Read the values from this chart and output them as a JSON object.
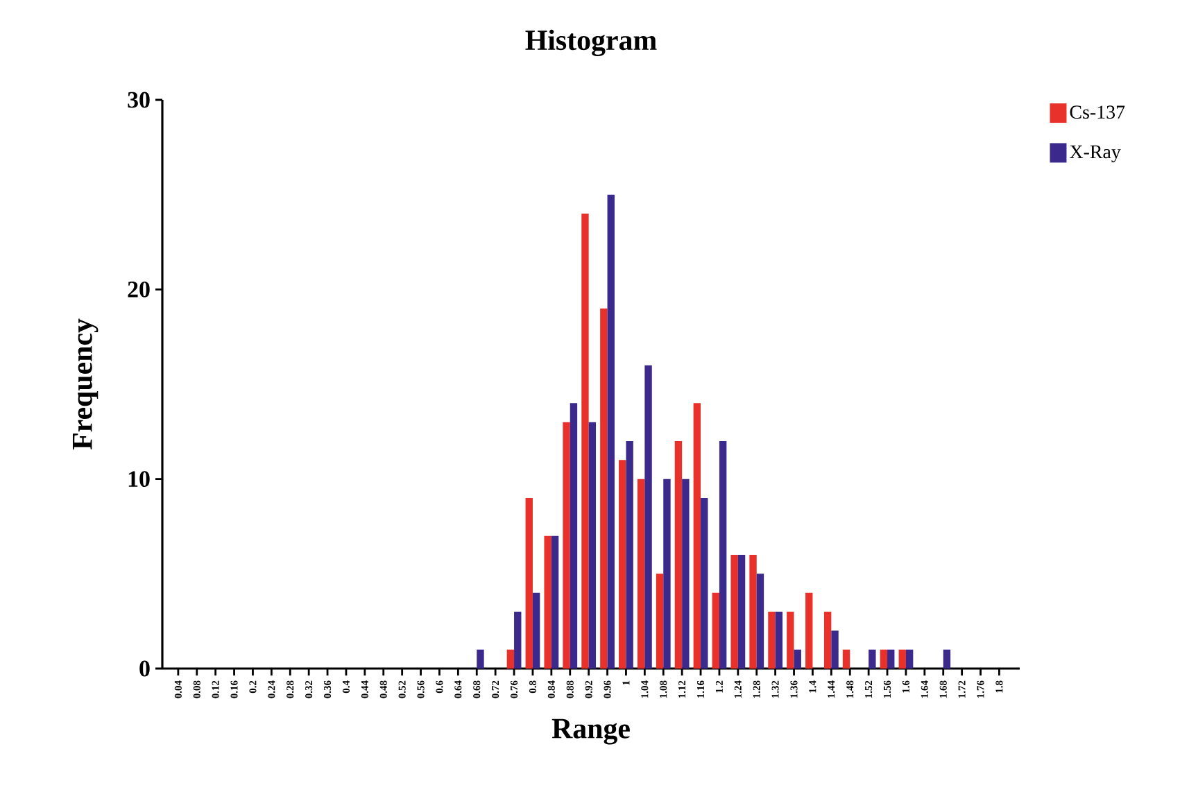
{
  "chart_data": {
    "type": "bar",
    "title": "Histogram",
    "xlabel": "Range",
    "ylabel": "Frequency",
    "categories": [
      "0.04",
      "0.08",
      "0.12",
      "0.16",
      "0.2",
      "0.24",
      "0.28",
      "0.32",
      "0.36",
      "0.4",
      "0.44",
      "0.48",
      "0.52",
      "0.56",
      "0.6",
      "0.64",
      "0.68",
      "0.72",
      "0.76",
      "0.8",
      "0.84",
      "0.88",
      "0.92",
      "0.96",
      "1",
      "1.04",
      "1.08",
      "1.12",
      "1.16",
      "1.2",
      "1.24",
      "1.28",
      "1.32",
      "1.36",
      "1.4",
      "1.44",
      "1.48",
      "1.52",
      "1.56",
      "1.6",
      "1.64",
      "1.68",
      "1.72",
      "1.76",
      "1.8"
    ],
    "series": [
      {
        "name": "Cs-137",
        "color": "#e8312a",
        "values": [
          0,
          0,
          0,
          0,
          0,
          0,
          0,
          0,
          0,
          0,
          0,
          0,
          0,
          0,
          0,
          0,
          0,
          0,
          1,
          9,
          7,
          13,
          24,
          19,
          11,
          10,
          5,
          12,
          14,
          4,
          6,
          6,
          3,
          3,
          4,
          3,
          1,
          0,
          1,
          1,
          0,
          0,
          0,
          0,
          0
        ]
      },
      {
        "name": "X-Ray",
        "color": "#3b2a8c",
        "values": [
          0,
          0,
          0,
          0,
          0,
          0,
          0,
          0,
          0,
          0,
          0,
          0,
          0,
          0,
          0,
          0,
          1,
          0,
          3,
          4,
          7,
          14,
          13,
          25,
          12,
          16,
          10,
          10,
          9,
          12,
          6,
          5,
          3,
          1,
          0,
          2,
          0,
          1,
          1,
          1,
          0,
          1,
          0,
          0,
          0
        ]
      }
    ],
    "ylim": [
      0,
      30
    ],
    "yticks": [
      0,
      10,
      20,
      30
    ],
    "grid": false,
    "legend": "top right"
  }
}
